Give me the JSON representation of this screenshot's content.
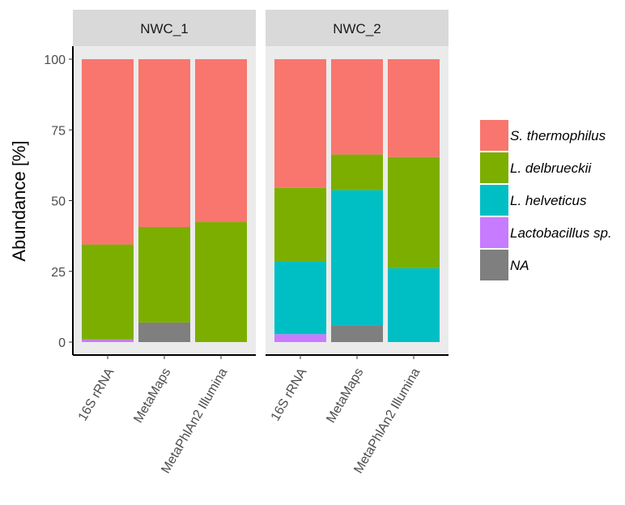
{
  "chart_data": {
    "type": "bar",
    "stacked": true,
    "ylabel": "Abundance [%]",
    "xlabel": "",
    "ylim": [
      0,
      100
    ],
    "yticks": [
      0,
      25,
      50,
      75,
      100
    ],
    "categories": [
      "16S rRNA",
      "MetaMaps",
      "MetaPhlAn2 Illumina"
    ],
    "legend_position": "right",
    "panels": [
      {
        "name": "NWC_1",
        "series": [
          {
            "name": "S. thermophilus",
            "values": [
              65.5,
              59.3,
              57.6
            ]
          },
          {
            "name": "L. delbrueckii",
            "values": [
              33.6,
              33.8,
              42.4
            ]
          },
          {
            "name": "L. helveticus",
            "values": [
              0.0,
              0.0,
              0.0
            ]
          },
          {
            "name": "Lactobacillus sp.",
            "values": [
              0.9,
              0.0,
              0.0
            ]
          },
          {
            "name": "NA",
            "values": [
              0.0,
              6.9,
              0.0
            ]
          }
        ]
      },
      {
        "name": "NWC_2",
        "series": [
          {
            "name": "S. thermophilus",
            "values": [
              45.5,
              33.7,
              34.6
            ]
          },
          {
            "name": "L. delbrueckii",
            "values": [
              26.0,
              12.6,
              39.3
            ]
          },
          {
            "name": "L. helveticus",
            "values": [
              25.7,
              47.8,
              26.1
            ]
          },
          {
            "name": "Lactobacillus sp.",
            "values": [
              2.8,
              0.0,
              0.0
            ]
          },
          {
            "name": "NA",
            "values": [
              0.0,
              5.9,
              0.0
            ]
          }
        ]
      }
    ],
    "legend": [
      {
        "name": "S. thermophilus",
        "color": "#F8766D"
      },
      {
        "name": "L. delbrueckii",
        "color": "#7CAE00"
      },
      {
        "name": "L. helveticus",
        "color": "#00BFC4"
      },
      {
        "name": "Lactobacillus sp.",
        "color": "#C77CFF"
      },
      {
        "name": "NA",
        "color": "#7F7F7F"
      }
    ],
    "stack_order_bottom_to_top": [
      "NA",
      "Lactobacillus sp.",
      "L. helveticus",
      "L. delbrueckii",
      "S. thermophilus"
    ],
    "panel_background": "#EBEBEB",
    "strip_background": "#D9D9D9"
  }
}
